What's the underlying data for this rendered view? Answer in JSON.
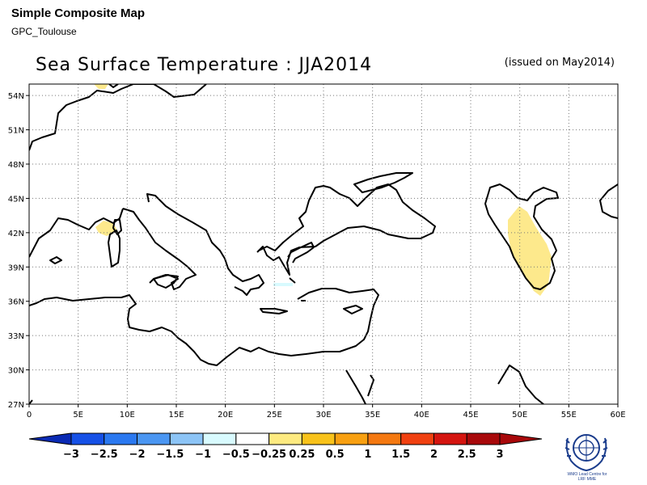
{
  "header": {
    "title": "Simple Composite Map",
    "subtitle": "GPC_Toulouse"
  },
  "map": {
    "title": "Sea Surface Temperature : JJA2014",
    "issued": "(issued on May2014)",
    "x_ticks": [
      "0",
      "5E",
      "10E",
      "15E",
      "20E",
      "25E",
      "30E",
      "35E",
      "40E",
      "45E",
      "50E",
      "55E",
      "60E"
    ],
    "y_ticks": [
      "54N",
      "51N",
      "48N",
      "45N",
      "42N",
      "39N",
      "36N",
      "33N",
      "30N",
      "27N"
    ],
    "lon_range": [
      0,
      60
    ],
    "lat_range": [
      27,
      55
    ],
    "grid": "dotted"
  },
  "colorbar": {
    "labels": [
      "−3",
      "−2.5",
      "−2",
      "−1.5",
      "−1",
      "−0.5",
      "−0.25",
      "0.25",
      "0.5",
      "1",
      "1.5",
      "2",
      "2.5",
      "3"
    ],
    "colors": [
      "#0a2ab4",
      "#1550e6",
      "#2a78f0",
      "#4a96f2",
      "#8cc4f6",
      "#d8fafe",
      "#ffffff",
      "#fdea80",
      "#f8c21a",
      "#f8a011",
      "#f47810",
      "#f04010",
      "#d4140f",
      "#a8080a"
    ]
  },
  "anomalies": {
    "positive_color": "#fde98c",
    "negative_color": "#d8fafe"
  },
  "logo": {
    "icon": "wmo-emblem-icon",
    "text_line1": "WMO Lead Centre for",
    "text_line2": "LRF MME"
  }
}
